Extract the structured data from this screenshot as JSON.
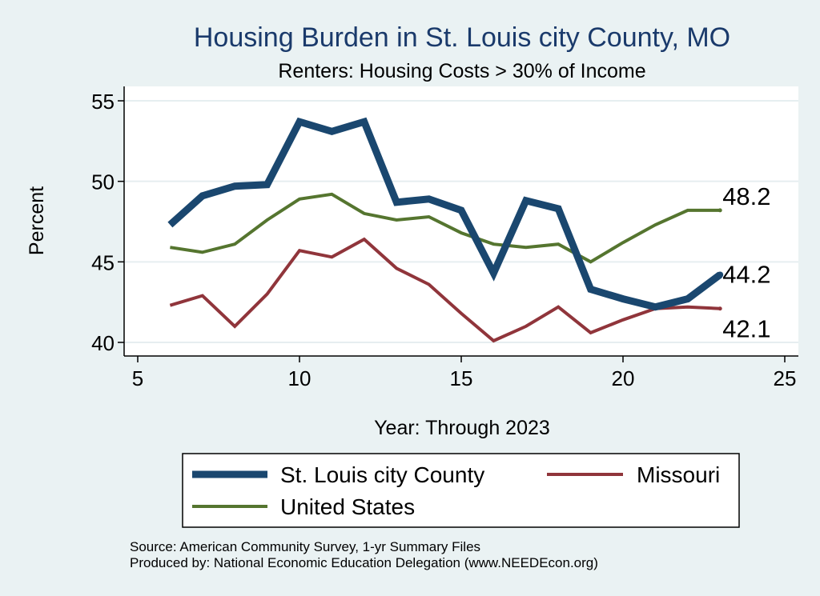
{
  "chart_data": {
    "type": "line",
    "title": "Housing Burden in St. Louis city County, MO",
    "subtitle": "Renters: Housing Costs > 30% of Income",
    "xlabel": "Year: Through 2023",
    "ylabel": "Percent",
    "xlim": [
      5,
      25
    ],
    "ylim": [
      40,
      55
    ],
    "x_ticks": [
      5,
      10,
      15,
      20,
      25
    ],
    "y_ticks": [
      40,
      45,
      50,
      55
    ],
    "grid": true,
    "legend_position": "bottom",
    "x": [
      6,
      7,
      8,
      9,
      10,
      11,
      12,
      13,
      14,
      15,
      16,
      17,
      18,
      19,
      20,
      21,
      22,
      23
    ],
    "series": [
      {
        "name": "St. Louis city County",
        "color": "#1a476f",
        "values": [
          47.3,
          49.1,
          49.7,
          49.8,
          53.7,
          53.1,
          53.7,
          48.7,
          48.9,
          48.2,
          44.3,
          48.8,
          48.3,
          43.3,
          42.7,
          42.2,
          42.7,
          44.2
        ],
        "end_label": "44.2"
      },
      {
        "name": "Missouri",
        "color": "#90353b",
        "values": [
          42.3,
          42.9,
          41.0,
          43.0,
          45.7,
          45.3,
          46.4,
          44.6,
          43.6,
          41.8,
          40.1,
          41.0,
          42.2,
          40.6,
          41.4,
          42.1,
          42.2,
          42.1
        ],
        "end_label": "42.1"
      },
      {
        "name": "United States",
        "color": "#55752f",
        "values": [
          45.9,
          45.6,
          46.1,
          47.6,
          48.9,
          49.2,
          48.0,
          47.6,
          47.8,
          46.8,
          46.1,
          45.9,
          46.1,
          45.0,
          46.2,
          47.3,
          48.2,
          48.2
        ],
        "end_label": "48.2"
      }
    ],
    "notes": [
      "Source: American Community Survey, 1-yr Summary Files",
      "Produced by: National Economic Education Delegation (www.NEEDEcon.org)"
    ]
  }
}
